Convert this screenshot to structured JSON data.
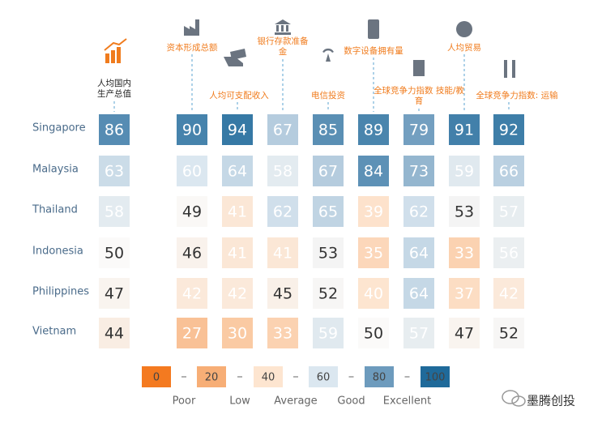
{
  "chart_data": {
    "type": "heatmap",
    "columns": [
      "人均国内生产总值",
      "资本形成总额",
      "人均可支配收入",
      "银行存款准备金",
      "电信投资",
      "数字设备拥有量",
      "全球竞争力指数 技能/教育",
      "人均贸易",
      "全球竞争力指数: 运输"
    ],
    "rows": [
      "Singapore",
      "Malaysia",
      "Thailand",
      "Indonesia",
      "Philippines",
      "Vietnam"
    ],
    "values": [
      [
        86,
        90,
        94,
        67,
        85,
        89,
        79,
        91,
        92
      ],
      [
        63,
        60,
        64,
        58,
        67,
        84,
        73,
        59,
        66
      ],
      [
        58,
        49,
        41,
        62,
        65,
        39,
        62,
        53,
        57
      ],
      [
        50,
        46,
        41,
        41,
        53,
        35,
        64,
        33,
        56
      ],
      [
        47,
        42,
        42,
        45,
        52,
        40,
        64,
        37,
        42
      ],
      [
        44,
        27,
        30,
        33,
        59,
        50,
        57,
        47,
        52
      ]
    ],
    "legend": {
      "ticks": [
        0,
        20,
        40,
        60,
        80,
        100
      ],
      "colors": [
        "#f47a20",
        "#f7ae76",
        "#fde5d0",
        "#dbe7f0",
        "#6d9bbd",
        "#1f6a9a"
      ],
      "labels": [
        "Poor",
        "Low",
        "Average",
        "Good",
        "Excellent"
      ]
    }
  },
  "watermark": "墨腾创投"
}
